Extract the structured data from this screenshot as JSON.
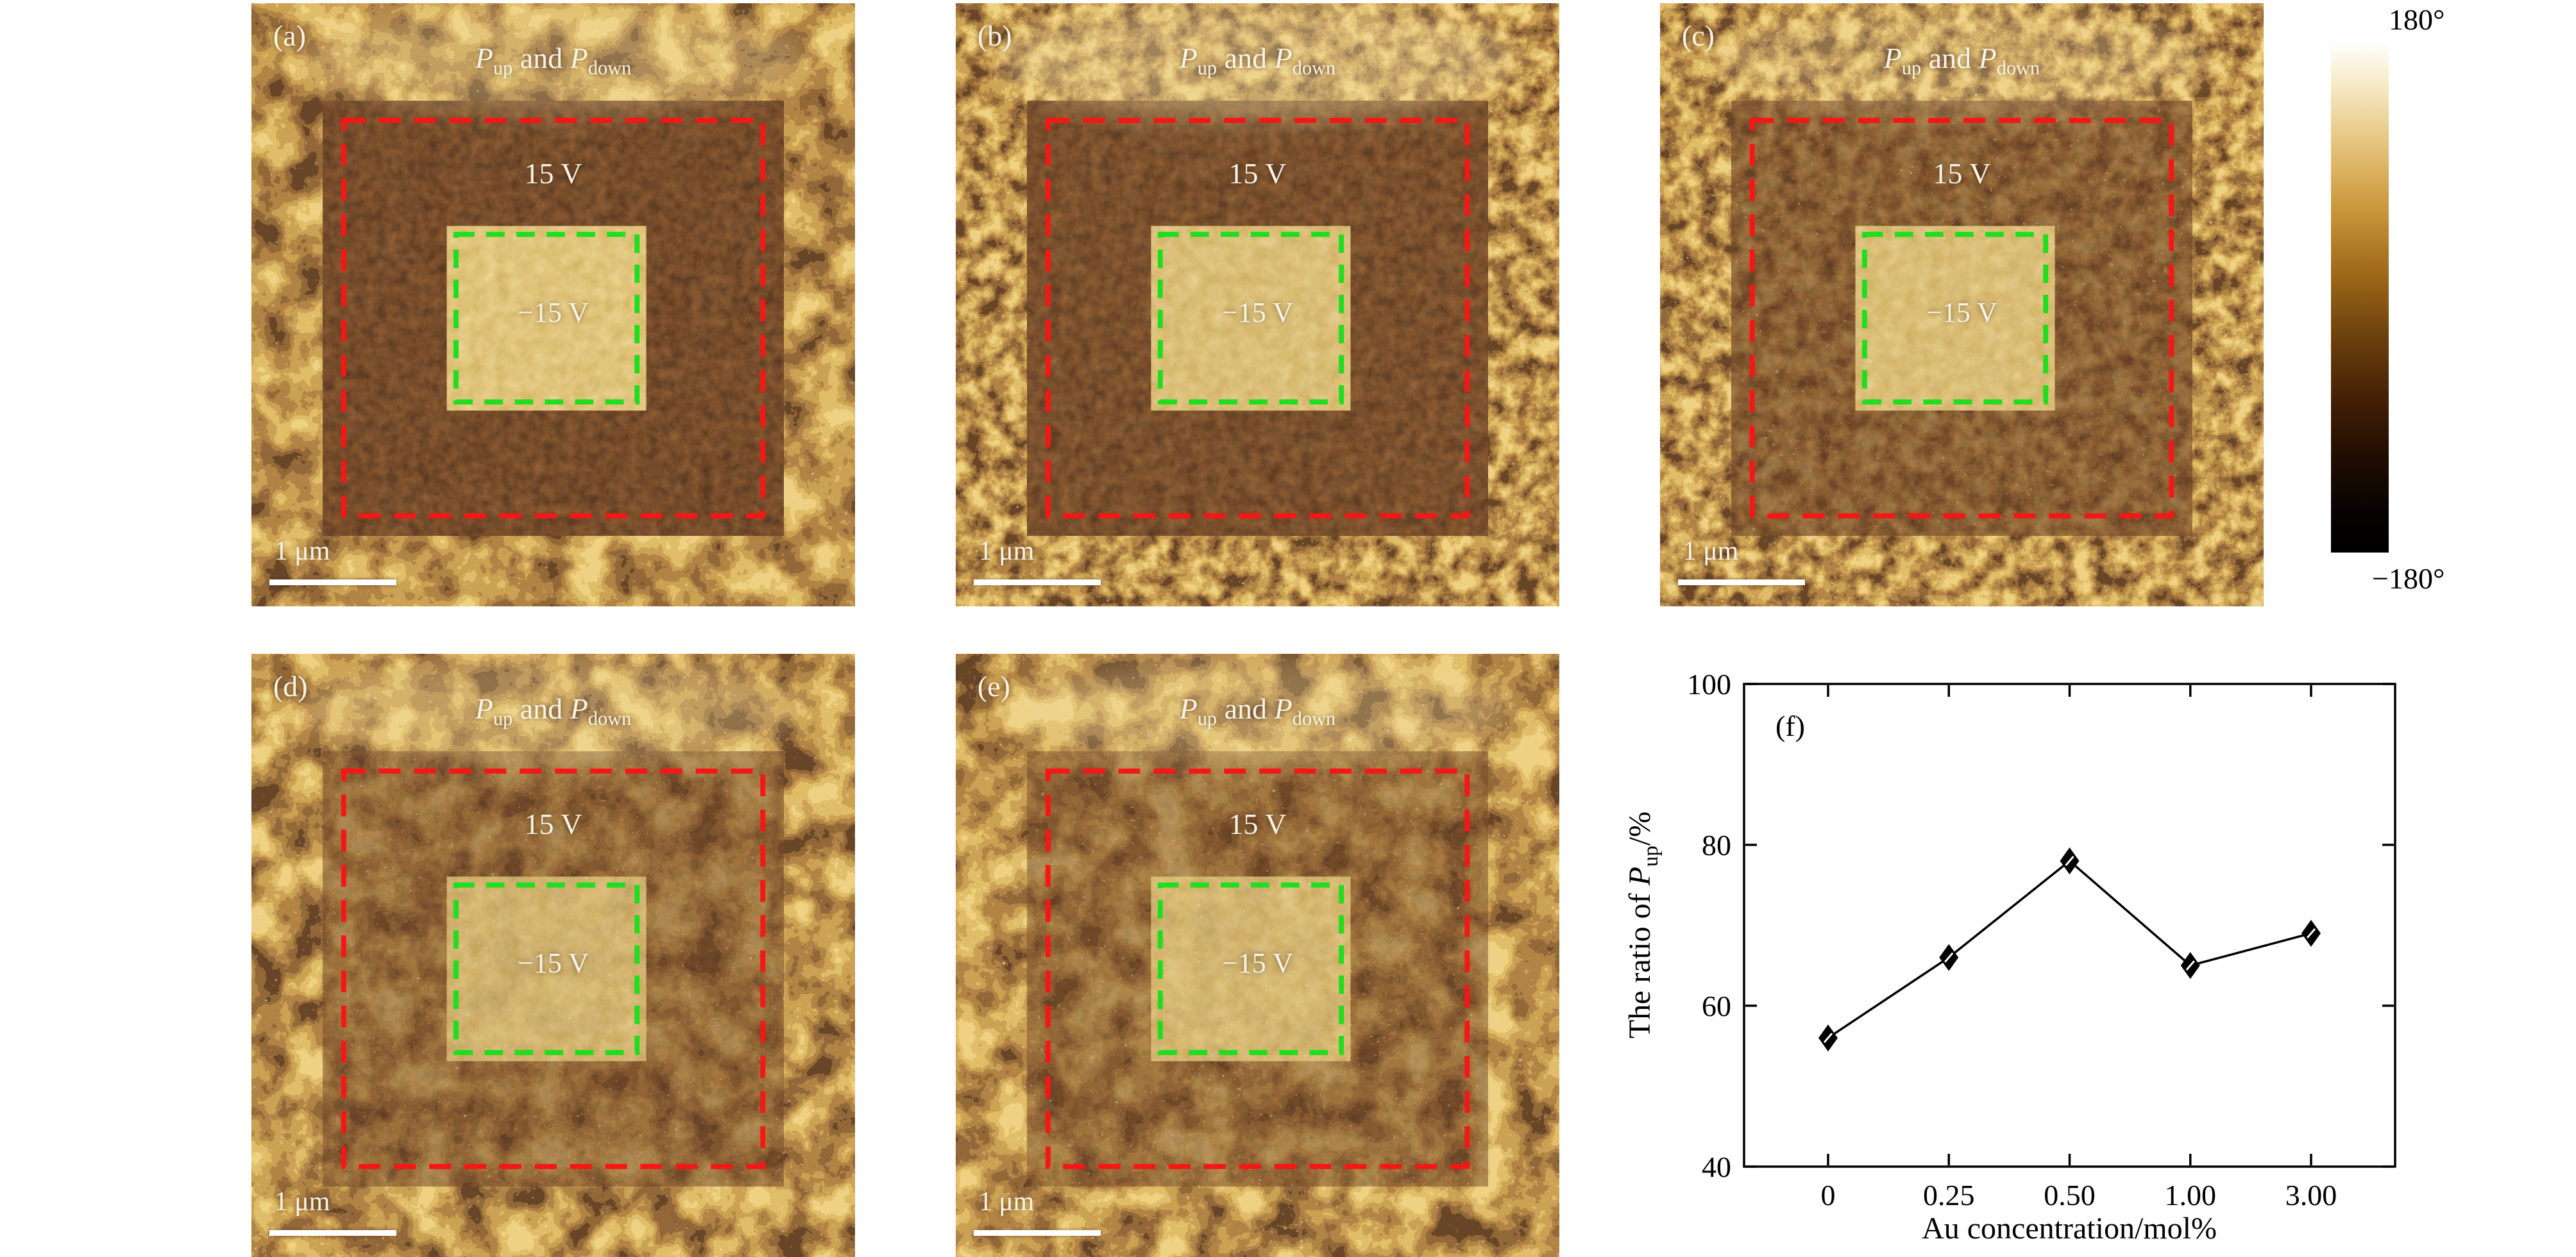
{
  "figure": {
    "description": "PFM phase images with poled square regions and switching ratio plot",
    "colorbar": {
      "top_label": "180°",
      "bottom_label": "−180°"
    },
    "box_colors": {
      "outer": "#f51616",
      "inner": "#1fdd1f"
    },
    "panel_text": {
      "p1": "P",
      "sub1": "up",
      "and": " and ",
      "p2": "P",
      "sub2": "down",
      "outer_voltage": "15 V",
      "inner_voltage": "−15 V",
      "scalebar": "1 μm"
    },
    "panels": [
      {
        "label": "(a)"
      },
      {
        "label": "(b)"
      },
      {
        "label": "(c)"
      },
      {
        "label": "(d)"
      },
      {
        "label": "(e)"
      }
    ]
  },
  "chart_data": {
    "type": "line",
    "panel_label": "(f)",
    "categories": [
      "0",
      "0.25",
      "0.50",
      "1.00",
      "3.00"
    ],
    "values": [
      56,
      66,
      78,
      65,
      69
    ],
    "title": "",
    "xlabel": "Au concentration/mol%",
    "ylabel_parts": {
      "pre": "The ratio of ",
      "p": "P",
      "sub": "up",
      "post": "/%"
    },
    "ylim": [
      40,
      100
    ],
    "yticks": [
      40,
      60,
      80,
      100
    ],
    "grid": false,
    "legend": "none",
    "marker": "diamond",
    "line_color": "#000000"
  }
}
